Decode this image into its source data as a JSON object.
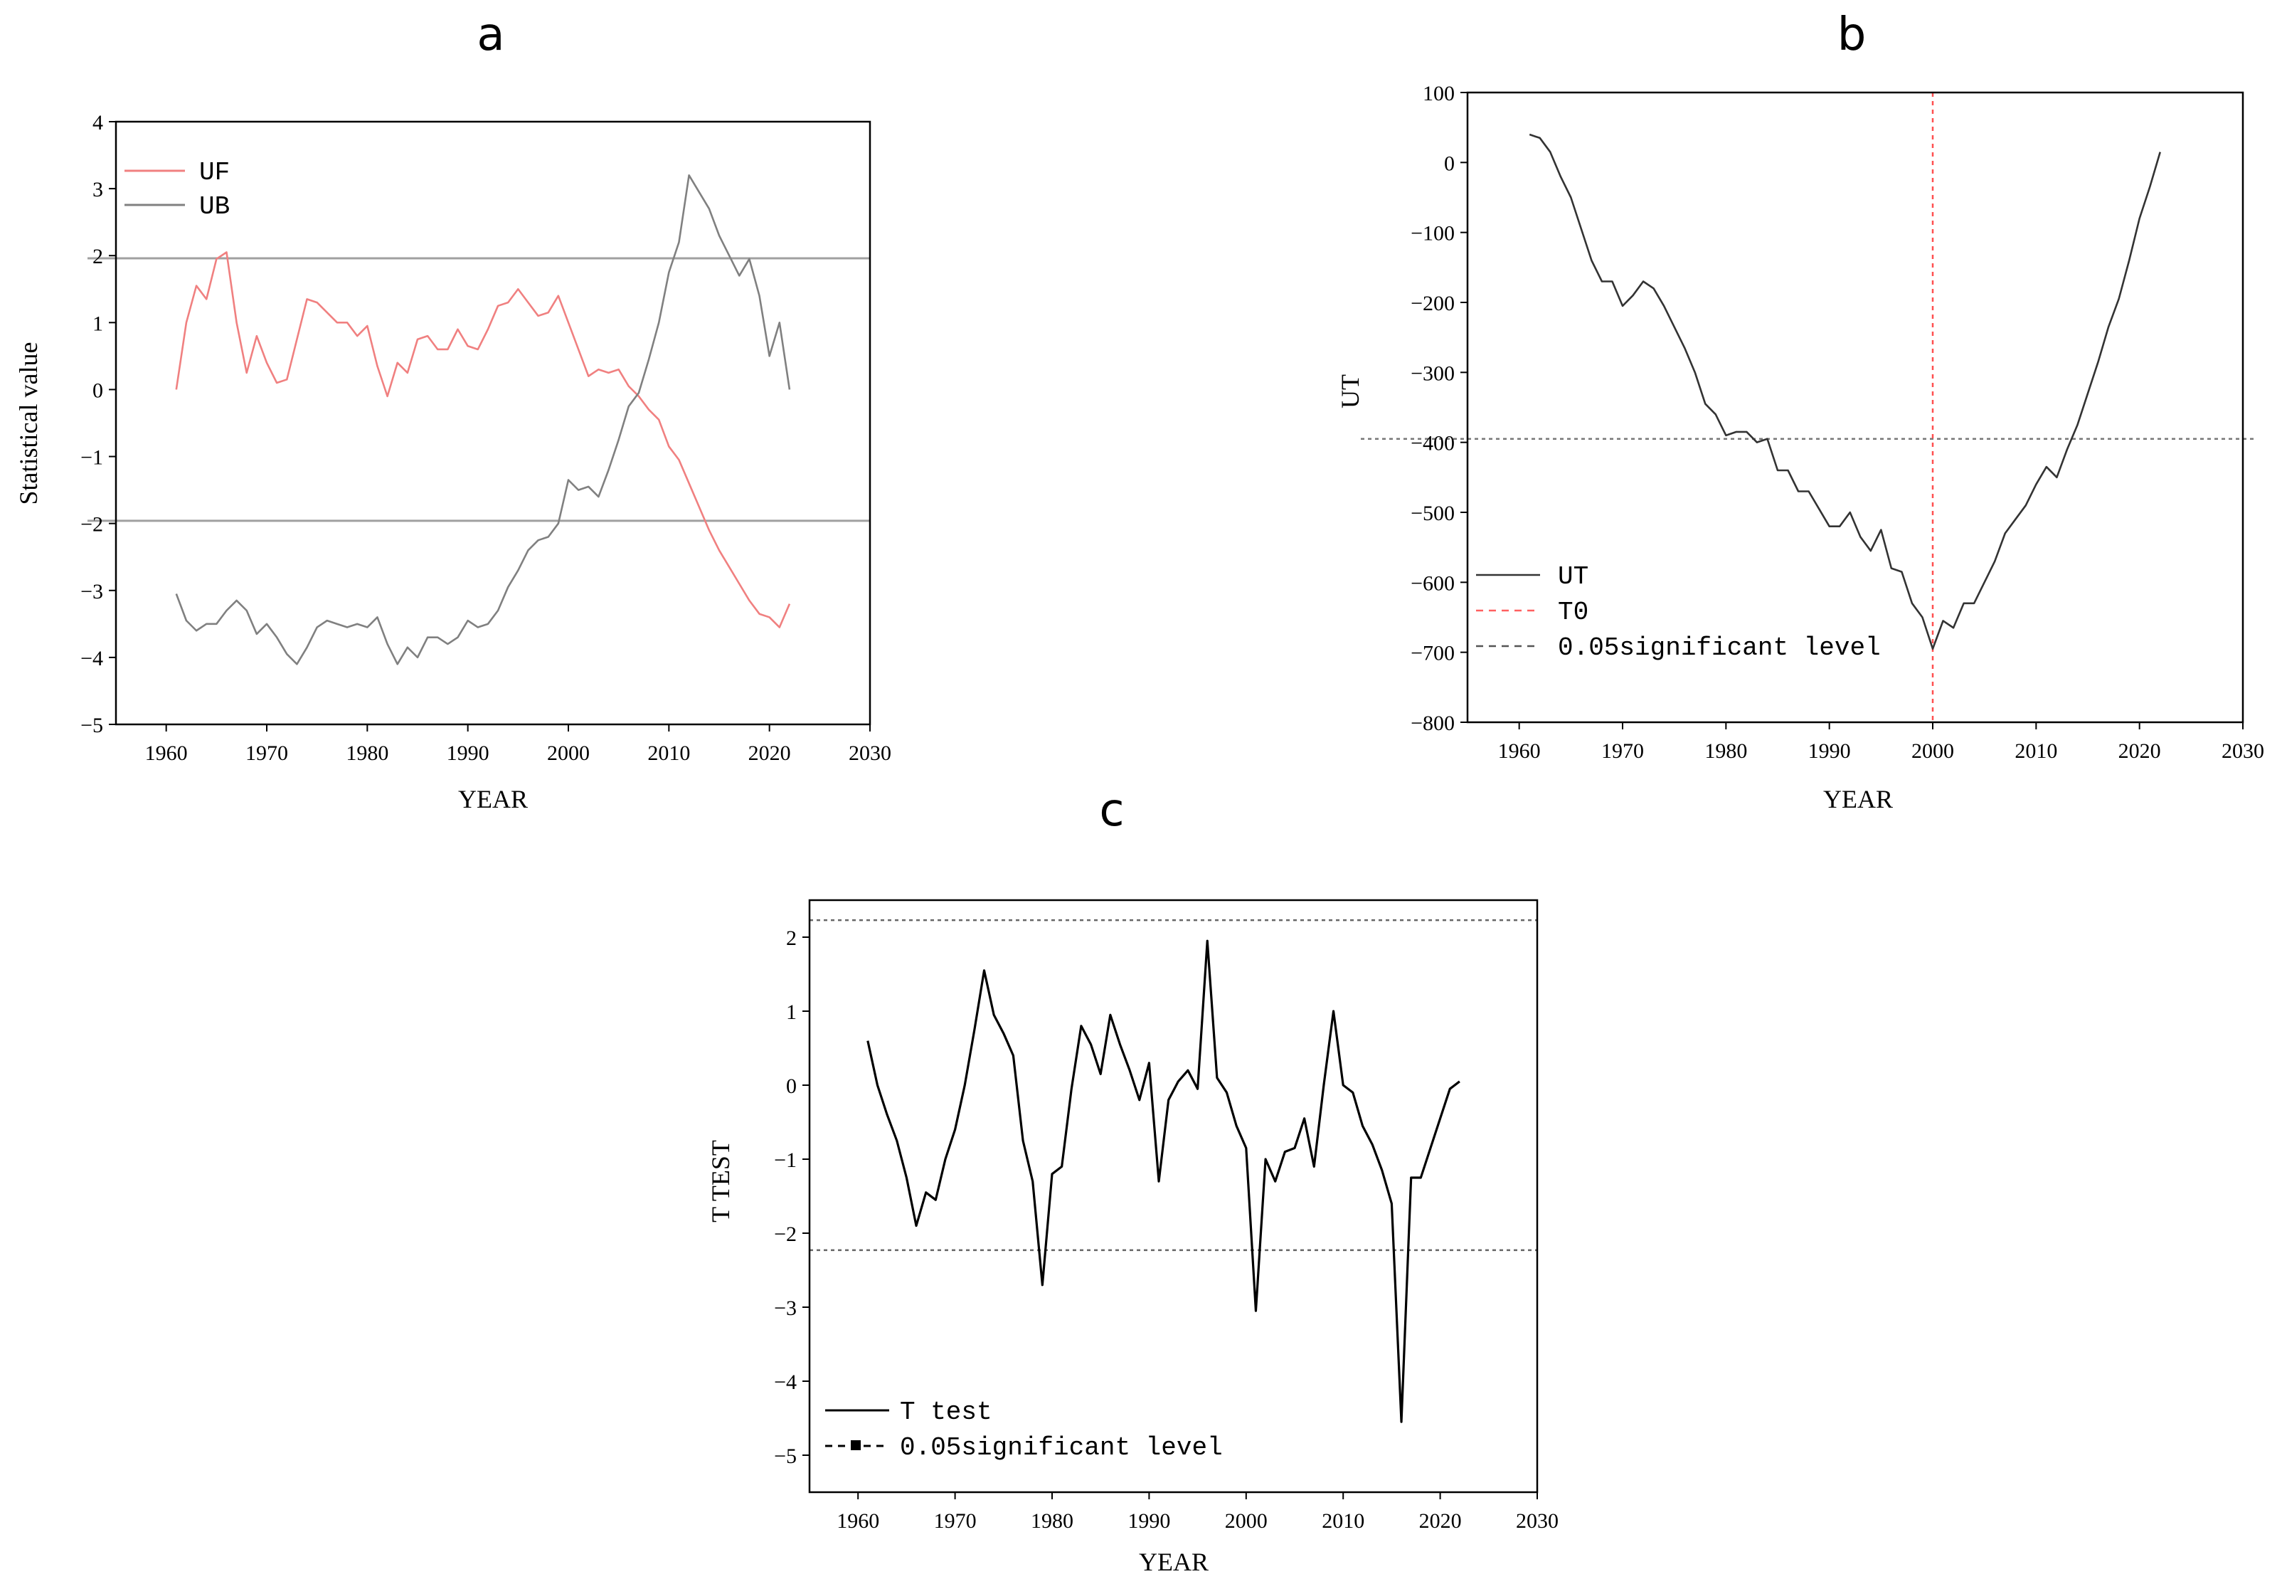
{
  "chart_data": [
    {
      "id": "a",
      "panel_label": "a",
      "type": "line",
      "xlabel": "YEAR",
      "ylabel": "Statistical value",
      "xlim": [
        1955,
        2030
      ],
      "ylim": [
        -5,
        4
      ],
      "xticks": [
        1960,
        1970,
        1980,
        1990,
        2000,
        2010,
        2020,
        2030
      ],
      "yticks": [
        4,
        3,
        2,
        1,
        0,
        -1,
        -2,
        -3,
        -4,
        -5
      ],
      "reference_lines": [
        1.96,
        -1.96
      ],
      "legend_position": "top-left",
      "series": [
        {
          "name": "UF",
          "color": "#f08080",
          "x_start": 1961,
          "values": [
            0.0,
            1.0,
            1.55,
            1.35,
            1.95,
            2.05,
            1.0,
            0.25,
            0.8,
            0.4,
            0.1,
            0.15,
            0.75,
            1.35,
            1.3,
            1.15,
            1.0,
            1.0,
            0.8,
            0.95,
            0.35,
            -0.1,
            0.4,
            0.25,
            0.75,
            0.8,
            0.6,
            0.6,
            0.9,
            0.65,
            0.6,
            0.9,
            1.25,
            1.3,
            1.5,
            1.3,
            1.1,
            1.15,
            1.4,
            1.0,
            0.6,
            0.2,
            0.3,
            0.25,
            0.3,
            0.05,
            -0.1,
            -0.3,
            -0.45,
            -0.85,
            -1.05,
            -1.4,
            -1.75,
            -2.1,
            -2.4,
            -2.65,
            -2.9,
            -3.15,
            -3.35,
            -3.4,
            -3.55,
            -3.2
          ]
        },
        {
          "name": "UB",
          "color": "#808080",
          "x_start": 1961,
          "values": [
            -3.05,
            -3.45,
            -3.6,
            -3.5,
            -3.5,
            -3.3,
            -3.15,
            -3.3,
            -3.65,
            -3.5,
            -3.7,
            -3.95,
            -4.1,
            -3.85,
            -3.55,
            -3.45,
            -3.5,
            -3.55,
            -3.5,
            -3.55,
            -3.4,
            -3.8,
            -4.1,
            -3.85,
            -4.0,
            -3.7,
            -3.7,
            -3.8,
            -3.7,
            -3.45,
            -3.55,
            -3.5,
            -3.3,
            -2.95,
            -2.7,
            -2.4,
            -2.25,
            -2.2,
            -2.0,
            -1.35,
            -1.5,
            -1.45,
            -1.6,
            -1.2,
            -0.75,
            -0.25,
            -0.05,
            0.45,
            1.0,
            1.75,
            2.2,
            3.2,
            2.95,
            2.7,
            2.3,
            2.0,
            1.7,
            1.95,
            1.4,
            0.5,
            1.0,
            0.0
          ]
        }
      ]
    },
    {
      "id": "b",
      "panel_label": "b",
      "type": "line",
      "xlabel": "YEAR",
      "ylabel": "UT",
      "xlim": [
        1955,
        2030
      ],
      "ylim": [
        -800,
        100
      ],
      "xticks": [
        1960,
        1970,
        1980,
        1990,
        2000,
        2010,
        2020,
        2030
      ],
      "yticks": [
        100,
        0,
        -100,
        -200,
        -300,
        -400,
        -500,
        -600,
        -700,
        -800
      ],
      "vertical_line_x": 2000,
      "significant_level": -395,
      "legend_position": "bottom-left",
      "legend": [
        "UT",
        "T0",
        "0.05significant level"
      ],
      "series": [
        {
          "name": "UT",
          "color": "#333333",
          "points": [
            [
              1961,
              40
            ],
            [
              1962,
              35
            ],
            [
              1963,
              15
            ],
            [
              1964,
              -20
            ],
            [
              1965,
              -50
            ],
            [
              1966,
              -95
            ],
            [
              1967,
              -140
            ],
            [
              1968,
              -170
            ],
            [
              1969,
              -170
            ],
            [
              1970,
              -205
            ],
            [
              1971,
              -190
            ],
            [
              1972,
              -170
            ],
            [
              1973,
              -180
            ],
            [
              1974,
              -205
            ],
            [
              1975,
              -235
            ],
            [
              1976,
              -265
            ],
            [
              1977,
              -300
            ],
            [
              1978,
              -345
            ],
            [
              1979,
              -360
            ],
            [
              1980,
              -390
            ],
            [
              1981,
              -385
            ],
            [
              1982,
              -385
            ],
            [
              1983,
              -400
            ],
            [
              1984,
              -395
            ],
            [
              1985,
              -440
            ],
            [
              1986,
              -440
            ],
            [
              1987,
              -470
            ],
            [
              1988,
              -470
            ],
            [
              1989,
              -495
            ],
            [
              1990,
              -520
            ],
            [
              1991,
              -520
            ],
            [
              1992,
              -500
            ],
            [
              1993,
              -535
            ],
            [
              1994,
              -555
            ],
            [
              1995,
              -525
            ],
            [
              1996,
              -580
            ],
            [
              1997,
              -585
            ],
            [
              1998,
              -630
            ],
            [
              1999,
              -650
            ],
            [
              2000,
              -695
            ],
            [
              2001,
              -655
            ],
            [
              2002,
              -665
            ],
            [
              2003,
              -630
            ],
            [
              2004,
              -630
            ],
            [
              2005,
              -600
            ],
            [
              2006,
              -570
            ],
            [
              2007,
              -530
            ],
            [
              2008,
              -510
            ],
            [
              2009,
              -490
            ],
            [
              2010,
              -460
            ],
            [
              2011,
              -435
            ],
            [
              2012,
              -450
            ],
            [
              2013,
              -410
            ],
            [
              2014,
              -375
            ],
            [
              2015,
              -330
            ],
            [
              2016,
              -285
            ],
            [
              2017,
              -235
            ],
            [
              2018,
              -195
            ],
            [
              2019,
              -140
            ],
            [
              2020,
              -80
            ],
            [
              2021,
              -35
            ],
            [
              2022,
              15
            ]
          ]
        }
      ]
    },
    {
      "id": "c",
      "panel_label": "c",
      "type": "line",
      "xlabel": "YEAR",
      "ylabel": "T TEST",
      "xlim": [
        1955,
        2030
      ],
      "ylim": [
        -5.5,
        2.5
      ],
      "xticks": [
        1960,
        1970,
        1980,
        1990,
        2000,
        2010,
        2020,
        2030
      ],
      "yticks": [
        2,
        1,
        0,
        -1,
        -2,
        -3,
        -4,
        -5
      ],
      "reference_lines": [
        2.23,
        -2.23
      ],
      "legend_position": "bottom-left",
      "legend": [
        "T test",
        "0.05significant level"
      ],
      "series": [
        {
          "name": "T test",
          "color": "#000000",
          "points": [
            [
              1961,
              0.6
            ],
            [
              1962,
              0.0
            ],
            [
              1963,
              -0.4
            ],
            [
              1964,
              -0.75
            ],
            [
              1965,
              -1.25
            ],
            [
              1966,
              -1.9
            ],
            [
              1967,
              -1.45
            ],
            [
              1968,
              -1.55
            ],
            [
              1969,
              -1.0
            ],
            [
              1970,
              -0.6
            ],
            [
              1971,
              0.0
            ],
            [
              1972,
              0.75
            ],
            [
              1973,
              1.55
            ],
            [
              1974,
              0.95
            ],
            [
              1975,
              0.7
            ],
            [
              1976,
              0.4
            ],
            [
              1977,
              -0.75
            ],
            [
              1978,
              -1.3
            ],
            [
              1979,
              -2.7
            ],
            [
              1980,
              -1.2
            ],
            [
              1981,
              -1.1
            ],
            [
              1982,
              -0.05
            ],
            [
              1983,
              0.8
            ],
            [
              1984,
              0.55
            ],
            [
              1985,
              0.15
            ],
            [
              1986,
              0.95
            ],
            [
              1987,
              0.55
            ],
            [
              1988,
              0.2
            ],
            [
              1989,
              -0.2
            ],
            [
              1990,
              0.3
            ],
            [
              1991,
              -1.3
            ],
            [
              1992,
              -0.2
            ],
            [
              1993,
              0.05
            ],
            [
              1994,
              0.2
            ],
            [
              1995,
              -0.05
            ],
            [
              1996,
              1.95
            ],
            [
              1997,
              0.1
            ],
            [
              1998,
              -0.1
            ],
            [
              1999,
              -0.55
            ],
            [
              2000,
              -0.85
            ],
            [
              2001,
              -3.05
            ],
            [
              2002,
              -1.0
            ],
            [
              2003,
              -1.3
            ],
            [
              2004,
              -0.9
            ],
            [
              2005,
              -0.85
            ],
            [
              2006,
              -0.45
            ],
            [
              2007,
              -1.1
            ],
            [
              2008,
              0.0
            ],
            [
              2009,
              1.0
            ],
            [
              2010,
              0.0
            ],
            [
              2011,
              -0.1
            ],
            [
              2012,
              -0.55
            ],
            [
              2013,
              -0.8
            ],
            [
              2014,
              -1.15
            ],
            [
              2015,
              -1.6
            ],
            [
              2016,
              -4.55
            ],
            [
              2017,
              -1.25
            ],
            [
              2018,
              -1.25
            ],
            [
              2019,
              -0.85
            ],
            [
              2020,
              -0.45
            ],
            [
              2021,
              -0.05
            ],
            [
              2022,
              0.05
            ]
          ]
        }
      ]
    }
  ]
}
